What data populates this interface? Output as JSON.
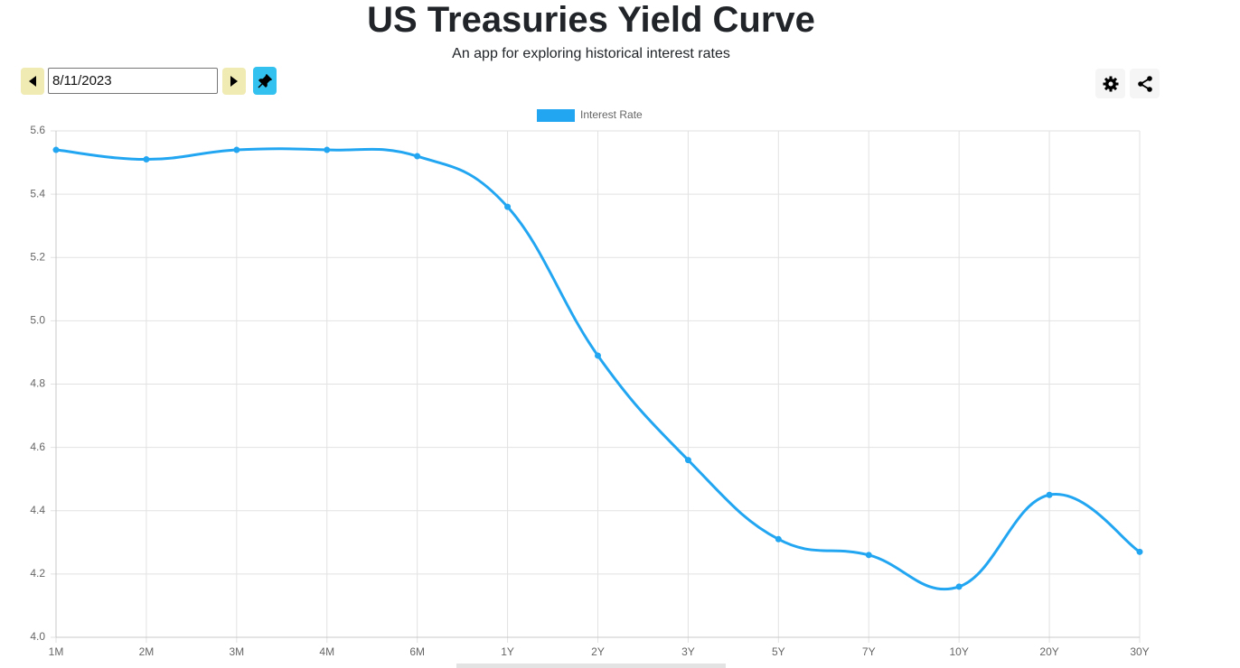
{
  "header": {
    "title": "US Treasuries Yield Curve",
    "subtitle": "An app for exploring historical interest rates"
  },
  "controls": {
    "date": "8/11/2023"
  },
  "chart_data": {
    "type": "line",
    "categories": [
      "1M",
      "2M",
      "3M",
      "4M",
      "6M",
      "1Y",
      "2Y",
      "3Y",
      "5Y",
      "7Y",
      "10Y",
      "20Y",
      "30Y"
    ],
    "series": [
      {
        "name": "Interest Rate",
        "color": "#22a6f2",
        "values": [
          5.54,
          5.51,
          5.54,
          5.54,
          5.52,
          5.36,
          4.89,
          4.56,
          4.31,
          4.26,
          4.16,
          4.45,
          4.27
        ]
      }
    ],
    "ylim": [
      4.0,
      5.6
    ],
    "yticks": [
      {
        "value": 4.0,
        "label": "4.0"
      },
      4.2,
      4.4,
      4.6,
      4.8,
      {
        "value": 5.0,
        "label": "5.0"
      },
      5.2,
      5.4,
      5.6
    ],
    "grid": true,
    "legend": "top",
    "smooth": true
  }
}
